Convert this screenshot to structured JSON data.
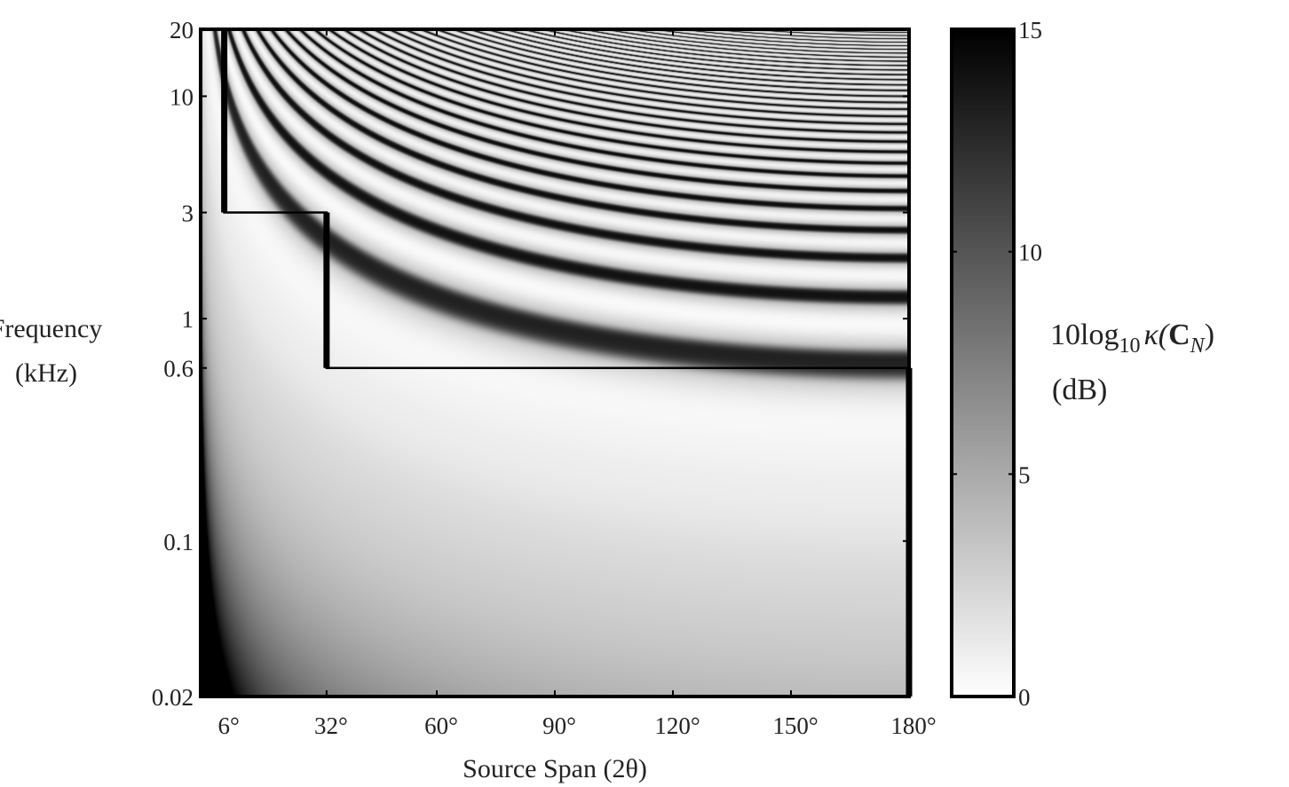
{
  "chart_data": {
    "type": "heatmap",
    "xlabel": "Source Span (2θ)",
    "ylabel_line1": "Frequency",
    "ylabel_line2": "(kHz)",
    "x_scale": "linear",
    "y_scale": "log",
    "xlim": [
      0,
      180
    ],
    "ylim": [
      0.02,
      20
    ],
    "x_ticks": [
      6,
      32,
      60,
      90,
      120,
      150,
      180
    ],
    "x_tick_labels": [
      "6°",
      "32°",
      "60°",
      "90°",
      "120°",
      "150°",
      "180°"
    ],
    "y_ticks": [
      0.02,
      0.1,
      0.6,
      1,
      3,
      10,
      20
    ],
    "y_tick_labels": [
      "0.02",
      "0.1",
      "0.6",
      "1",
      "3",
      "10",
      "20"
    ],
    "colorbar": {
      "label_main": "10log",
      "label_sub": "10",
      "label_kappa": "κ(",
      "label_bold": "C",
      "label_subN": "N",
      "label_close": ")",
      "unit": "(dB)",
      "range": [
        0,
        15
      ],
      "ticks": [
        0,
        5,
        10,
        15
      ],
      "tick_labels": [
        "0",
        "5",
        "10",
        "15"
      ],
      "colormap": "gray (white = 0 dB, black = 15 dB)"
    },
    "boundary_path": [
      {
        "x": 6,
        "y": 20
      },
      {
        "x": 6,
        "y": 3
      },
      {
        "x": 32,
        "y": 3
      },
      {
        "x": 32,
        "y": 0.6
      },
      {
        "x": 180,
        "y": 0.6
      },
      {
        "x": 180,
        "y": 0.02
      }
    ],
    "colors": {
      "low": "#ffffff",
      "high": "#000000",
      "line": "#000000"
    }
  }
}
